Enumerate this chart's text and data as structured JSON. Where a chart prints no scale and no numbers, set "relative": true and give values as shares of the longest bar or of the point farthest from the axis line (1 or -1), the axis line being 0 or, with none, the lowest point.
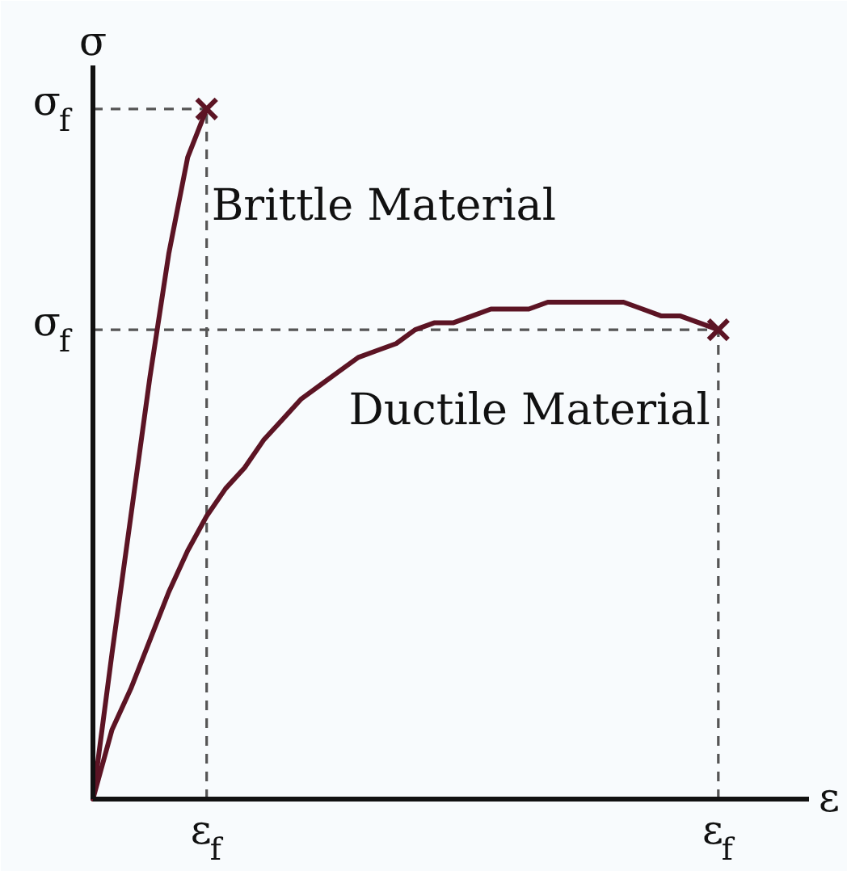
{
  "chart_data": {
    "type": "line",
    "xlabel": "ε",
    "ylabel": "σ",
    "relative": true,
    "tick_labels": "x",
    "line_style": "solid",
    "categories": [
      null,
      null,
      null,
      null,
      null,
      null,
      "ε$_{f}$",
      null,
      null,
      null,
      null,
      null,
      null,
      null,
      null,
      null,
      null,
      null,
      null,
      null,
      null,
      null,
      null,
      null,
      null,
      null,
      null,
      null,
      null,
      null,
      null,
      null,
      null,
      "ε$_{f}$"
    ],
    "series": [
      {
        "name": "Brittle Material",
        "color": "#5c1424",
        "values": [
          0,
          0.21,
          0.41,
          0.61,
          0.79,
          0.93,
          1,
          null,
          null,
          null,
          null,
          null,
          null,
          null,
          null,
          null,
          null,
          null,
          null,
          null,
          null,
          null,
          null,
          null,
          null,
          null,
          null,
          null,
          null,
          null,
          null,
          null,
          null,
          null
        ]
      },
      {
        "name": "Ductile Material",
        "color": "#5c1424",
        "values": [
          0,
          0.1,
          0.16,
          0.23,
          0.3,
          0.36,
          0.41,
          0.45,
          0.48,
          0.52,
          0.55,
          0.58,
          0.6,
          0.62,
          0.64,
          0.65,
          0.66,
          0.68,
          0.69,
          0.69,
          0.7,
          0.71,
          0.71,
          0.71,
          0.72,
          0.72,
          0.72,
          0.72,
          0.72,
          0.71,
          0.7,
          0.7,
          0.69,
          0.68
        ]
      },
      {
        "type": "scatter",
        "color": "#5c1424",
        "marker": "cross",
        "values": [
          null,
          null,
          null,
          null,
          null,
          null,
          1,
          null,
          null,
          null,
          null,
          null,
          null,
          null,
          null,
          null,
          null,
          null,
          null,
          null,
          null,
          null,
          null,
          null,
          null,
          null,
          null,
          null,
          null,
          null,
          null,
          null,
          null,
          0.68
        ]
      }
    ],
    "ref_lines": [
      {
        "axis": "y",
        "value": 1,
        "label": "σ$_{f}$",
        "line_style": "dashed",
        "color": "#555555"
      },
      {
        "axis": "y",
        "value": 0.68,
        "label": "σ$_{f}$",
        "line_style": "dashed",
        "color": "#555555"
      },
      {
        "axis": "x",
        "value": "ε$_{f}$",
        "line_style": "dashed",
        "color": "#555555"
      }
    ]
  }
}
